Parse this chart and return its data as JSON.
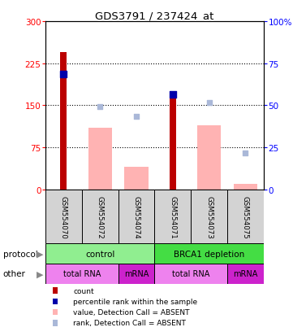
{
  "title": "GDS3791 / 237424_at",
  "samples": [
    "GSM554070",
    "GSM554072",
    "GSM554074",
    "GSM554071",
    "GSM554073",
    "GSM554075"
  ],
  "red_bars": [
    245,
    0,
    0,
    175,
    0,
    0
  ],
  "pink_bars": [
    0,
    110,
    40,
    0,
    115,
    10
  ],
  "blue_squares_left": [
    205,
    0,
    0,
    170,
    0,
    0
  ],
  "light_blue_squares_left": [
    0,
    148,
    130,
    0,
    155,
    65
  ],
  "ylim_left": [
    0,
    300
  ],
  "ylim_right": [
    0,
    100
  ],
  "yticks_left": [
    0,
    75,
    150,
    225,
    300
  ],
  "yticks_right": [
    0,
    25,
    50,
    75,
    100
  ],
  "ytick_right_labels": [
    "0",
    "25",
    "50",
    "75",
    "100%"
  ],
  "protocol_groups": [
    {
      "label": "control",
      "start": 0,
      "end": 3,
      "color": "#90ee90"
    },
    {
      "label": "BRCA1 depletion",
      "start": 3,
      "end": 6,
      "color": "#44dd44"
    }
  ],
  "other_groups": [
    {
      "label": "total RNA",
      "start": 0,
      "end": 2,
      "color": "#ee82ee"
    },
    {
      "label": "mRNA",
      "start": 2,
      "end": 3,
      "color": "#cc22cc"
    },
    {
      "label": "total RNA",
      "start": 3,
      "end": 5,
      "color": "#ee82ee"
    },
    {
      "label": "mRNA",
      "start": 5,
      "end": 6,
      "color": "#cc22cc"
    }
  ],
  "red_color": "#bb0000",
  "pink_color": "#ffb3b3",
  "blue_color": "#0000aa",
  "light_blue_color": "#aab8d8",
  "grid_color": "#888888",
  "bg_color": "#d3d3d3",
  "legend_labels": [
    "count",
    "percentile rank within the sample",
    "value, Detection Call = ABSENT",
    "rank, Detection Call = ABSENT"
  ]
}
